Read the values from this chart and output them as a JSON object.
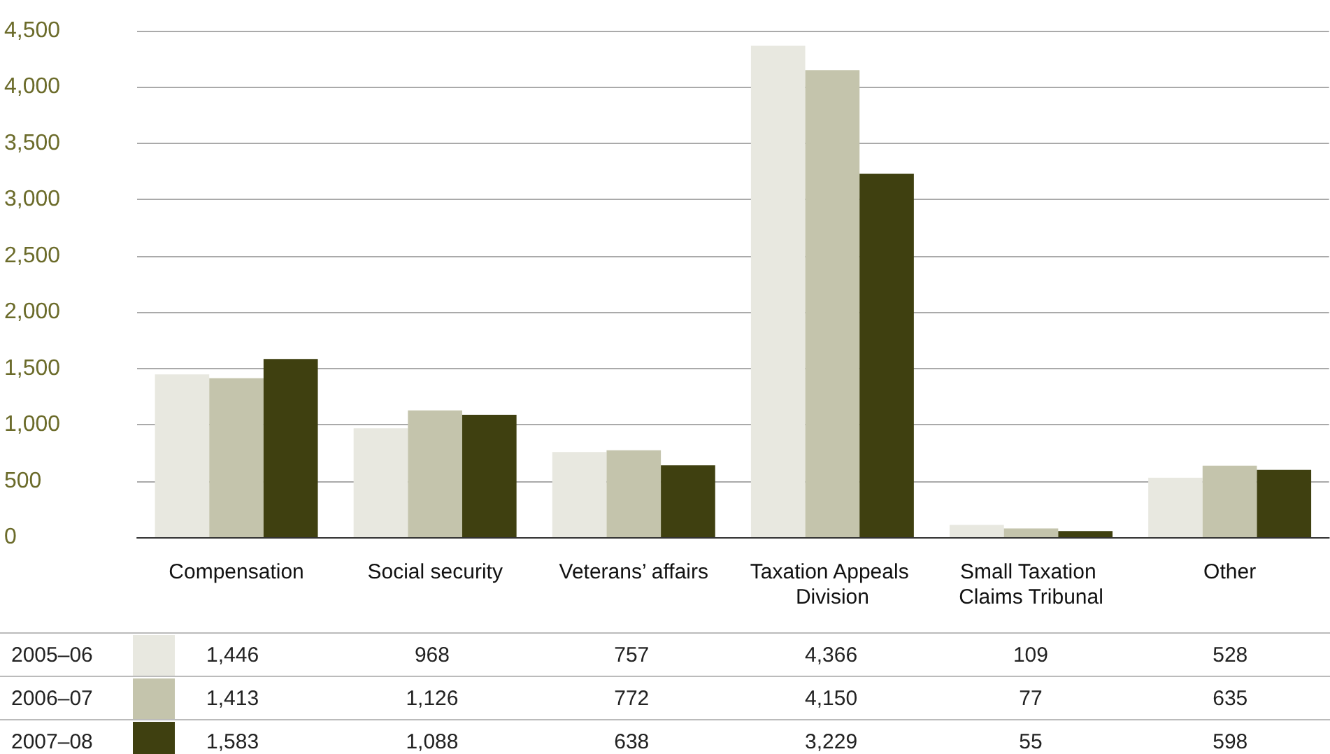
{
  "chart_data": {
    "type": "bar",
    "categories": [
      "Compensation",
      "Social security",
      "Veterans’ affairs",
      "Taxation Appeals Division",
      "Small Taxation Claims Tribunal",
      "Other"
    ],
    "series": [
      {
        "name": "2005–06",
        "color": "#e8e8e0",
        "values": [
          1446,
          968,
          757,
          4366,
          109,
          528
        ],
        "value_labels": [
          "1,446",
          "968",
          "757",
          "4,366",
          "109",
          "528"
        ]
      },
      {
        "name": "2006–07",
        "color": "#c4c4ac",
        "values": [
          1413,
          1126,
          772,
          4150,
          77,
          635
        ],
        "value_labels": [
          "1,413",
          "1,126",
          "772",
          "4,150",
          "77",
          "635"
        ]
      },
      {
        "name": "2007–08",
        "color": "#3f4010",
        "values": [
          1583,
          1088,
          638,
          3229,
          55,
          598
        ],
        "value_labels": [
          "1,583",
          "1,088",
          "638",
          "3,229",
          "55",
          "598"
        ]
      }
    ],
    "ylim": [
      0,
      4500
    ],
    "yticks": [
      {
        "value": 0,
        "label": "0"
      },
      {
        "value": 500,
        "label": "500"
      },
      {
        "value": 1000,
        "label": "1,000"
      },
      {
        "value": 1500,
        "label": "1,500"
      },
      {
        "value": 2000,
        "label": "2,000"
      },
      {
        "value": 2500,
        "label": "2,500"
      },
      {
        "value": 3000,
        "label": "3,000"
      },
      {
        "value": 3500,
        "label": "3,500"
      },
      {
        "value": 4000,
        "label": "4,000"
      },
      {
        "value": 4500,
        "label": "4,500"
      }
    ],
    "grid": "y",
    "legend": "bottom left"
  }
}
